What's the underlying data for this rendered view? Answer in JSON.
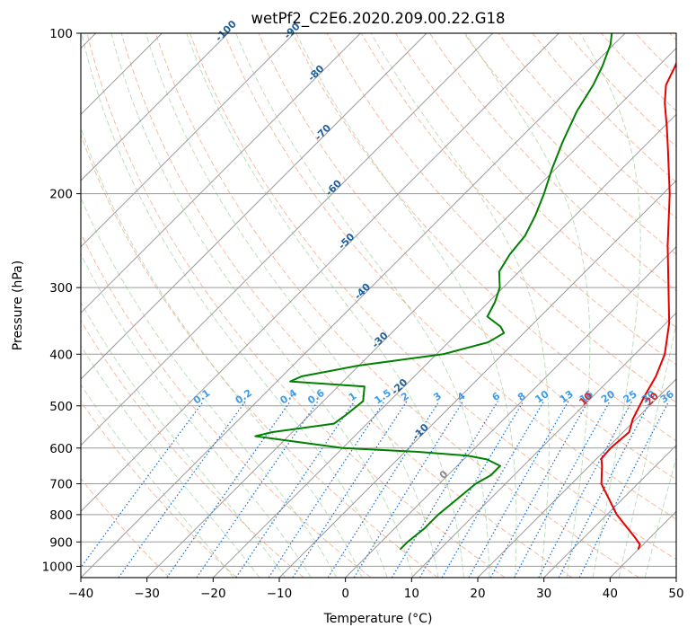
{
  "chart_data": {
    "type": "line",
    "title": "wetPf2_C2E6.2020.209.00.22.G18",
    "xlabel": "Temperature (°C)",
    "ylabel": "Pressure (hPa)",
    "xlim": [
      -40,
      50
    ],
    "ylim": [
      1050,
      100
    ],
    "y_scale": "log",
    "grid": true,
    "x_ticks": [
      -40,
      -30,
      -20,
      -10,
      0,
      10,
      20,
      30,
      40,
      50
    ],
    "y_ticks": [
      100,
      200,
      300,
      400,
      500,
      600,
      700,
      800,
      900,
      1000
    ],
    "series": [
      {
        "kind": "temperature",
        "color": "#e60000",
        "points": [
          {
            "p": 930,
            "t": 40.0
          },
          {
            "p": 910,
            "t": 39.5
          },
          {
            "p": 880,
            "t": 37.5
          },
          {
            "p": 800,
            "t": 31.5
          },
          {
            "p": 700,
            "t": 24.5
          },
          {
            "p": 650,
            "t": 22.0
          },
          {
            "p": 628,
            "t": 20.7
          },
          {
            "p": 600,
            "t": 20.5
          },
          {
            "p": 560,
            "t": 20.9
          },
          {
            "p": 530,
            "t": 19.5
          },
          {
            "p": 480,
            "t": 17.8
          },
          {
            "p": 440,
            "t": 16.5
          },
          {
            "p": 400,
            "t": 14.5
          },
          {
            "p": 350,
            "t": 10.5
          },
          {
            "p": 300,
            "t": 5.0
          },
          {
            "p": 250,
            "t": -1.5
          },
          {
            "p": 200,
            "t": -9.0
          },
          {
            "p": 165,
            "t": -16.0
          },
          {
            "p": 150,
            "t": -19.5
          },
          {
            "p": 135,
            "t": -23.5
          },
          {
            "p": 125,
            "t": -26.0
          },
          {
            "p": 115,
            "t": -27.5
          },
          {
            "p": 108,
            "t": -28.8
          },
          {
            "p": 100,
            "t": -30.5
          }
        ]
      },
      {
        "kind": "dewpoint",
        "color": "#008000",
        "points": [
          {
            "p": 930,
            "t": 4.0
          },
          {
            "p": 900,
            "t": 4.0
          },
          {
            "p": 850,
            "t": 4.5
          },
          {
            "p": 800,
            "t": 4.5
          },
          {
            "p": 750,
            "t": 5.0
          },
          {
            "p": 700,
            "t": 5.5
          },
          {
            "p": 675,
            "t": 6.5
          },
          {
            "p": 648,
            "t": 6.5
          },
          {
            "p": 630,
            "t": 3.5
          },
          {
            "p": 620,
            "t": 0.0
          },
          {
            "p": 610,
            "t": -8.0
          },
          {
            "p": 600,
            "t": -20.0
          },
          {
            "p": 580,
            "t": -30.0
          },
          {
            "p": 570,
            "t": -35.0
          },
          {
            "p": 560,
            "t": -33.0
          },
          {
            "p": 540,
            "t": -25.0
          },
          {
            "p": 520,
            "t": -24.5
          },
          {
            "p": 490,
            "t": -24.0
          },
          {
            "p": 460,
            "t": -26.0
          },
          {
            "p": 450,
            "t": -38.0
          },
          {
            "p": 440,
            "t": -37.0
          },
          {
            "p": 420,
            "t": -30.0
          },
          {
            "p": 400,
            "t": -19.0
          },
          {
            "p": 380,
            "t": -14.0
          },
          {
            "p": 365,
            "t": -13.0
          },
          {
            "p": 355,
            "t": -14.5
          },
          {
            "p": 340,
            "t": -18.0
          },
          {
            "p": 320,
            "t": -19.0
          },
          {
            "p": 300,
            "t": -20.5
          },
          {
            "p": 280,
            "t": -23.0
          },
          {
            "p": 260,
            "t": -24.0
          },
          {
            "p": 240,
            "t": -24.5
          },
          {
            "p": 220,
            "t": -26.0
          },
          {
            "p": 200,
            "t": -28.0
          },
          {
            "p": 180,
            "t": -30.5
          },
          {
            "p": 160,
            "t": -33.0
          },
          {
            "p": 140,
            "t": -35.5
          },
          {
            "p": 125,
            "t": -37.0
          },
          {
            "p": 115,
            "t": -38.5
          },
          {
            "p": 105,
            "t": -40.5
          },
          {
            "p": 100,
            "t": -42.0
          }
        ]
      }
    ],
    "isotherm_labels": [
      "-100",
      "-90",
      "-80",
      "-70",
      "-60",
      "-50",
      "-40",
      "-30",
      "-20",
      "-10",
      "0",
      "10",
      "20",
      "30",
      "40"
    ],
    "isotherm_label_values": [
      -100,
      -90,
      -80,
      -70,
      -60,
      -50,
      -40,
      -30,
      -20,
      -10,
      0,
      10,
      20,
      30,
      40
    ],
    "mixing_ratio_labels": [
      "0.1",
      "0.2",
      "0.4",
      "0.6",
      "1",
      "1.5",
      "2",
      "3",
      "4",
      "6",
      "8",
      "10",
      "13",
      "16",
      "20",
      "25",
      "30",
      "36"
    ],
    "mixing_ratio_values": [
      0.1,
      0.2,
      0.4,
      0.6,
      1,
      1.5,
      2,
      3,
      4,
      6,
      8,
      10,
      13,
      16,
      20,
      25,
      30,
      36
    ],
    "mixing_ratio_label_pressure": 490,
    "colors": {
      "dry_adiabat": "#f4a582",
      "moist_adiabat": "#91c98d",
      "mixing_ratio": "#1f77d4",
      "isotherm_label_cold": "#1f5f9f",
      "isotherm_label_zero": "#888888",
      "isotherm_label_warm": "#d62728",
      "skewed_grid": "#9a9a9a"
    }
  }
}
